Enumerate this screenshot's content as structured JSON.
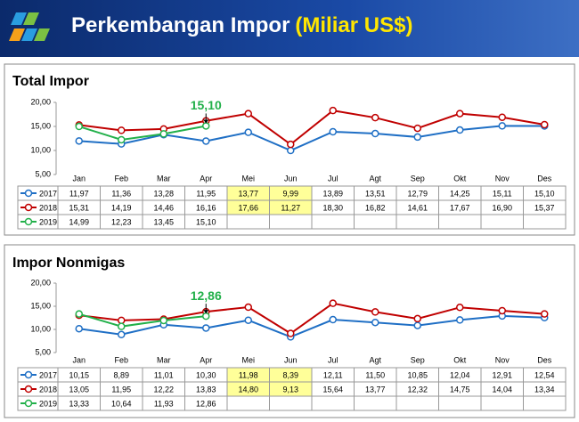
{
  "header": {
    "title": "Perkembangan Impor",
    "unit": "(Miliar US$)"
  },
  "chart_data": [
    {
      "type": "line",
      "title": "Total Impor",
      "categories": [
        "Jan",
        "Feb",
        "Mar",
        "Apr",
        "Mei",
        "Jun",
        "Jul",
        "Agt",
        "Sep",
        "Okt",
        "Nov",
        "Des"
      ],
      "ylim": [
        5,
        20
      ],
      "yticks": [
        {
          "value": 5,
          "label": "5,00"
        },
        {
          "value": 10,
          "label": "10,00"
        },
        {
          "value": 15,
          "label": "15,00"
        },
        {
          "value": 20,
          "label": "20,00"
        }
      ],
      "annotation": "15,10",
      "series": [
        {
          "name": "2017",
          "color": "#1f6fc5",
          "values": [
            11.97,
            11.36,
            13.28,
            11.95,
            13.77,
            9.99,
            13.89,
            13.51,
            12.79,
            14.25,
            15.11,
            15.1
          ],
          "value_labels": [
            "11,97",
            "11,36",
            "13,28",
            "11,95",
            "13,77",
            "9,99",
            "13,89",
            "13,51",
            "12,79",
            "14,25",
            "15,11",
            "15,10"
          ]
        },
        {
          "name": "2018",
          "color": "#c00000",
          "values": [
            15.31,
            14.19,
            14.46,
            16.16,
            17.66,
            11.27,
            18.3,
            16.82,
            14.61,
            17.67,
            16.9,
            15.37
          ],
          "value_labels": [
            "15,31",
            "14,19",
            "14,46",
            "16,16",
            "17,66",
            "11,27",
            "18,30",
            "16,82",
            "14,61",
            "17,67",
            "16,90",
            "15,37"
          ]
        },
        {
          "name": "2019",
          "color": "#22b04a",
          "values": [
            14.99,
            12.23,
            13.45,
            15.1,
            null,
            null,
            null,
            null,
            null,
            null,
            null,
            null
          ],
          "value_labels": [
            "14,99",
            "12,23",
            "13,45",
            "15,10",
            null,
            null,
            null,
            null,
            null,
            null,
            null,
            null
          ]
        }
      ]
    },
    {
      "type": "line",
      "title": "Impor Nonmigas",
      "categories": [
        "Jan",
        "Feb",
        "Mar",
        "Apr",
        "Mei",
        "Jun",
        "Jul",
        "Agt",
        "Sep",
        "Okt",
        "Nov",
        "Des"
      ],
      "ylim": [
        5,
        20
      ],
      "yticks": [
        {
          "value": 5,
          "label": "5,00"
        },
        {
          "value": 10,
          "label": "10,00"
        },
        {
          "value": 15,
          "label": "15,00"
        },
        {
          "value": 20,
          "label": "20,00"
        }
      ],
      "annotation": "12,86",
      "series": [
        {
          "name": "2017",
          "color": "#1f6fc5",
          "values": [
            10.15,
            8.89,
            11.01,
            10.3,
            11.98,
            8.39,
            12.11,
            11.5,
            10.85,
            12.04,
            12.91,
            12.54
          ],
          "value_labels": [
            "10,15",
            "8,89",
            "11,01",
            "10,30",
            "11,98",
            "8,39",
            "12,11",
            "11,50",
            "10,85",
            "12,04",
            "12,91",
            "12,54"
          ]
        },
        {
          "name": "2018",
          "color": "#c00000",
          "values": [
            13.05,
            11.95,
            12.22,
            13.83,
            14.8,
            9.13,
            15.64,
            13.77,
            12.32,
            14.75,
            14.04,
            13.34
          ],
          "value_labels": [
            "13,05",
            "11,95",
            "12,22",
            "13,83",
            "14,80",
            "9,13",
            "15,64",
            "13,77",
            "12,32",
            "14,75",
            "14,04",
            "13,34"
          ]
        },
        {
          "name": "2019",
          "color": "#22b04a",
          "values": [
            13.33,
            10.64,
            11.93,
            12.86,
            null,
            null,
            null,
            null,
            null,
            null,
            null,
            null
          ],
          "value_labels": [
            "13,33",
            "10,64",
            "11,93",
            "12,86",
            null,
            null,
            null,
            null,
            null,
            null,
            null,
            null
          ]
        }
      ]
    }
  ]
}
